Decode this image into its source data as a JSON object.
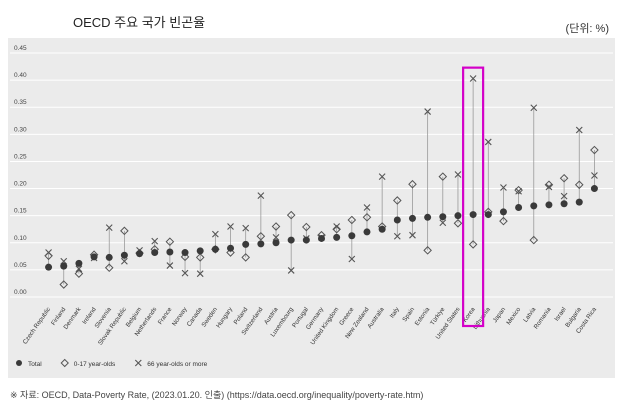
{
  "header": {
    "title": "OECD 주요 국가 빈곤율",
    "unit": "(단위: %)"
  },
  "footer": {
    "source": "※ 자료: OECD, Data-Poverty Rate, (2023.01.20. 인출) (https://data.oecd.org/inequality/poverty-rate.htm)"
  },
  "colors": {
    "panel_bg": "#ebebeb",
    "grid": "#ffffff",
    "total": "#3a3a3a",
    "marker": "#555555",
    "highlight": "#d400c8"
  },
  "chart_data": {
    "type": "scatter",
    "title": "",
    "xlabel": "",
    "ylabel": "",
    "ylim": [
      0,
      0.45
    ],
    "yticks": [
      "0.00",
      "0.05",
      "0.10",
      "0.15",
      "0.20",
      "0.25",
      "0.30",
      "0.35",
      "0.40",
      "0.45"
    ],
    "grid": true,
    "legend_position": "bottom-left",
    "highlighted_category": "Korea",
    "categories": [
      "Czech Republic",
      "Finland",
      "Denmark",
      "Ireland",
      "Slovenia",
      "Slovak Republic",
      "Belgium",
      "Netherlands",
      "France",
      "Norway",
      "Canada",
      "Sweden",
      "Hungary",
      "Poland",
      "Switzerland",
      "Austria",
      "Luxembourg",
      "Portugal",
      "Germany",
      "United Kingdom",
      "Greece",
      "New Zealand",
      "Australia",
      "Italy",
      "Spain",
      "Estonia",
      "Türkiye",
      "United States",
      "Korea",
      "Lithuania",
      "Japan",
      "Mexico",
      "Latvia",
      "Romania",
      "Israel",
      "Bulgaria",
      "Costa Rica"
    ],
    "series": [
      {
        "name": "Total",
        "marker": "dot",
        "values": [
          0.055,
          0.057,
          0.062,
          0.074,
          0.073,
          0.077,
          0.08,
          0.082,
          0.083,
          0.082,
          0.085,
          0.088,
          0.09,
          0.097,
          0.098,
          0.1,
          0.105,
          0.105,
          0.108,
          0.11,
          0.113,
          0.12,
          0.125,
          0.142,
          0.145,
          0.147,
          0.148,
          0.15,
          0.152,
          0.152,
          0.157,
          0.165,
          0.168,
          0.17,
          0.172,
          0.175,
          0.2
        ]
      },
      {
        "name": "0-17 year-olds",
        "marker": "diamond",
        "values": [
          0.076,
          0.023,
          0.043,
          0.078,
          0.054,
          0.122,
          0.081,
          0.088,
          0.102,
          0.074,
          0.073,
          0.088,
          0.082,
          0.073,
          0.112,
          0.13,
          0.151,
          0.129,
          0.114,
          0.125,
          0.142,
          0.147,
          0.13,
          0.178,
          0.208,
          0.086,
          0.222,
          0.136,
          0.097,
          0.157,
          0.14,
          0.197,
          0.105,
          0.207,
          0.219,
          0.207,
          0.271
        ]
      },
      {
        "name": "66 year-olds or more",
        "marker": "x",
        "values": [
          0.082,
          0.066,
          0.052,
          0.072,
          0.128,
          0.066,
          0.086,
          0.103,
          0.058,
          0.044,
          0.043,
          0.116,
          0.13,
          0.127,
          0.187,
          0.11,
          0.049,
          0.108,
          0.11,
          0.13,
          0.07,
          0.165,
          0.222,
          0.112,
          0.114,
          0.342,
          0.137,
          0.226,
          0.403,
          0.286,
          0.202,
          0.195,
          0.349,
          0.203,
          0.186,
          0.308,
          0.224
        ]
      }
    ]
  }
}
